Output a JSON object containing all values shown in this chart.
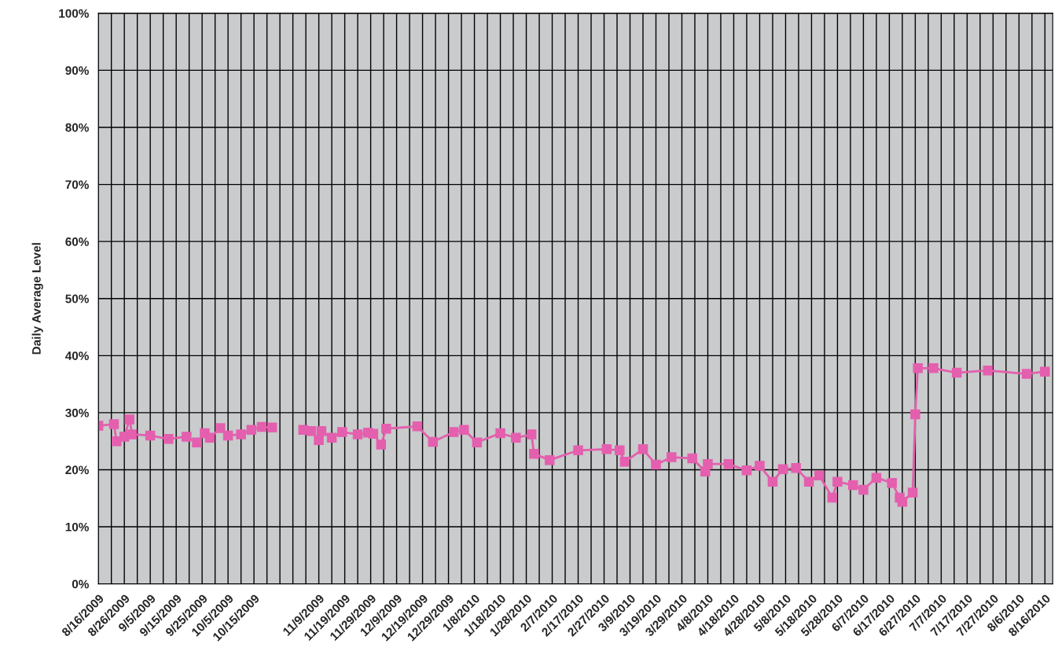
{
  "chart_data": {
    "type": "line",
    "ylabel": "Daily Average Level",
    "marker": "square",
    "line_style": "solid",
    "grid": true,
    "series": [
      {
        "color": "#e45fae",
        "x": [
          "2009-08-16",
          "2009-08-22",
          "2009-08-23",
          "2009-08-26",
          "2009-08-28",
          "2009-08-29",
          "2009-09-05",
          "2009-09-12",
          "2009-09-19",
          "2009-09-23",
          "2009-09-26",
          "2009-09-28",
          "2009-10-02",
          "2009-10-05",
          "2009-10-10",
          "2009-10-14",
          "2009-10-18",
          "2009-10-22",
          "2009-10-26",
          "2009-11-03",
          "2009-11-06",
          "2009-11-09",
          "2009-11-10",
          "2009-11-14",
          "2009-11-18",
          "2009-11-24",
          "2009-11-28",
          "2009-11-30",
          "2009-12-03",
          "2009-12-05",
          "2009-12-17",
          "2009-12-23",
          "2009-12-31",
          "2010-01-04",
          "2010-01-09",
          "2010-01-18",
          "2010-01-24",
          "2010-01-30",
          "2010-01-31",
          "2010-02-06",
          "2010-02-17",
          "2010-02-28",
          "2010-03-05",
          "2010-03-07",
          "2010-03-14",
          "2010-03-19",
          "2010-03-25",
          "2010-04-02",
          "2010-04-07",
          "2010-04-08",
          "2010-04-16",
          "2010-04-23",
          "2010-04-28",
          "2010-05-03",
          "2010-05-07",
          "2010-05-12",
          "2010-05-17",
          "2010-05-21",
          "2010-05-26",
          "2010-05-28",
          "2010-06-03",
          "2010-06-07",
          "2010-06-12",
          "2010-06-18",
          "2010-06-21",
          "2010-06-22",
          "2010-06-26",
          "2010-06-27",
          "2010-06-28",
          "2010-07-04",
          "2010-07-13",
          "2010-07-25",
          "2010-08-09",
          "2010-08-16"
        ],
        "values": [
          27.7,
          28.0,
          25.0,
          25.8,
          28.8,
          26.2,
          26.0,
          25.4,
          25.8,
          24.8,
          26.4,
          25.6,
          27.3,
          26.0,
          26.2,
          27.0,
          27.5,
          27.4,
          null,
          27.0,
          26.8,
          25.2,
          26.8,
          25.6,
          26.6,
          26.2,
          26.5,
          26.3,
          24.4,
          27.2,
          27.6,
          24.9,
          26.6,
          27.0,
          24.8,
          26.4,
          25.6,
          26.2,
          22.8,
          21.7,
          23.4,
          23.6,
          23.4,
          21.4,
          23.6,
          20.9,
          22.2,
          22.0,
          19.7,
          21.0,
          21.0,
          19.9,
          20.7,
          17.9,
          20.1,
          20.3,
          17.9,
          19.0,
          15.1,
          17.9,
          17.3,
          16.5,
          18.6,
          17.7,
          15.1,
          14.4,
          16.0,
          29.7,
          37.8,
          37.8,
          37.0,
          37.4,
          36.8,
          37.2
        ]
      }
    ],
    "xlim": [
      "2009-08-16",
      "2010-08-19"
    ],
    "xticks": [
      {
        "value": "2009-08-16",
        "label": "8/16/2009"
      },
      {
        "value": "2009-08-21",
        "label": null
      },
      {
        "value": "2009-08-26",
        "label": "8/26/2009"
      },
      {
        "value": "2009-08-31",
        "label": null
      },
      {
        "value": "2009-09-05",
        "label": "9/5/2009"
      },
      {
        "value": "2009-09-10",
        "label": null
      },
      {
        "value": "2009-09-15",
        "label": "9/15/2009"
      },
      {
        "value": "2009-09-20",
        "label": null
      },
      {
        "value": "2009-09-25",
        "label": "9/25/2009"
      },
      {
        "value": "2009-09-30",
        "label": null
      },
      {
        "value": "2009-10-05",
        "label": "10/5/2009"
      },
      {
        "value": "2009-10-10",
        "label": null
      },
      {
        "value": "2009-10-15",
        "label": "10/15/2009"
      },
      {
        "value": "2009-10-20",
        "label": null
      },
      {
        "value": "2009-10-25",
        "label": null
      },
      {
        "value": "2009-10-30",
        "label": null
      },
      {
        "value": "2009-11-04",
        "label": null
      },
      {
        "value": "2009-11-09",
        "label": "11/9/2009"
      },
      {
        "value": "2009-11-14",
        "label": null
      },
      {
        "value": "2009-11-19",
        "label": "11/19/2009"
      },
      {
        "value": "2009-11-24",
        "label": null
      },
      {
        "value": "2009-11-29",
        "label": "11/29/2009"
      },
      {
        "value": "2009-12-04",
        "label": null
      },
      {
        "value": "2009-12-09",
        "label": "12/9/2009"
      },
      {
        "value": "2009-12-14",
        "label": null
      },
      {
        "value": "2009-12-19",
        "label": "12/19/2009"
      },
      {
        "value": "2009-12-24",
        "label": null
      },
      {
        "value": "2009-12-29",
        "label": "12/29/2009"
      },
      {
        "value": "2010-01-03",
        "label": null
      },
      {
        "value": "2010-01-08",
        "label": "1/8/2010"
      },
      {
        "value": "2010-01-13",
        "label": null
      },
      {
        "value": "2010-01-18",
        "label": "1/18/2010"
      },
      {
        "value": "2010-01-23",
        "label": null
      },
      {
        "value": "2010-01-28",
        "label": "1/28/2010"
      },
      {
        "value": "2010-02-02",
        "label": null
      },
      {
        "value": "2010-02-07",
        "label": "2/7/2010"
      },
      {
        "value": "2010-02-12",
        "label": null
      },
      {
        "value": "2010-02-17",
        "label": "2/17/2010"
      },
      {
        "value": "2010-02-22",
        "label": null
      },
      {
        "value": "2010-02-27",
        "label": "2/27/2010"
      },
      {
        "value": "2010-03-04",
        "label": null
      },
      {
        "value": "2010-03-09",
        "label": "3/9/2010"
      },
      {
        "value": "2010-03-14",
        "label": null
      },
      {
        "value": "2010-03-19",
        "label": "3/19/2010"
      },
      {
        "value": "2010-03-24",
        "label": null
      },
      {
        "value": "2010-03-29",
        "label": "3/29/2010"
      },
      {
        "value": "2010-04-03",
        "label": null
      },
      {
        "value": "2010-04-08",
        "label": "4/8/2010"
      },
      {
        "value": "2010-04-13",
        "label": null
      },
      {
        "value": "2010-04-18",
        "label": "4/18/2010"
      },
      {
        "value": "2010-04-23",
        "label": null
      },
      {
        "value": "2010-04-28",
        "label": "4/28/2010"
      },
      {
        "value": "2010-05-03",
        "label": null
      },
      {
        "value": "2010-05-08",
        "label": "5/8/2010"
      },
      {
        "value": "2010-05-13",
        "label": null
      },
      {
        "value": "2010-05-18",
        "label": "5/18/2010"
      },
      {
        "value": "2010-05-23",
        "label": null
      },
      {
        "value": "2010-05-28",
        "label": "5/28/2010"
      },
      {
        "value": "2010-06-02",
        "label": null
      },
      {
        "value": "2010-06-07",
        "label": "6/7/2010"
      },
      {
        "value": "2010-06-12",
        "label": null
      },
      {
        "value": "2010-06-17",
        "label": "6/17/2010"
      },
      {
        "value": "2010-06-22",
        "label": null
      },
      {
        "value": "2010-06-27",
        "label": "6/27/2010"
      },
      {
        "value": "2010-07-02",
        "label": null
      },
      {
        "value": "2010-07-07",
        "label": "7/7/2010"
      },
      {
        "value": "2010-07-12",
        "label": null
      },
      {
        "value": "2010-07-17",
        "label": "7/17/2010"
      },
      {
        "value": "2010-07-22",
        "label": null
      },
      {
        "value": "2010-07-27",
        "label": "7/27/2010"
      },
      {
        "value": "2010-08-01",
        "label": null
      },
      {
        "value": "2010-08-06",
        "label": "8/6/2010"
      },
      {
        "value": "2010-08-11",
        "label": null
      },
      {
        "value": "2010-08-16",
        "label": "8/16/2010"
      }
    ],
    "ylim": [
      0,
      100
    ],
    "yticks": [
      {
        "value": 0,
        "label": "0%"
      },
      {
        "value": 10,
        "label": "10%"
      },
      {
        "value": 20,
        "label": "20%"
      },
      {
        "value": 30,
        "label": "30%"
      },
      {
        "value": 40,
        "label": "40%"
      },
      {
        "value": 50,
        "label": "50%"
      },
      {
        "value": 60,
        "label": "60%"
      },
      {
        "value": 70,
        "label": "70%"
      },
      {
        "value": 80,
        "label": "80%"
      },
      {
        "value": 90,
        "label": "90%"
      },
      {
        "value": 100,
        "label": "100%"
      }
    ]
  }
}
